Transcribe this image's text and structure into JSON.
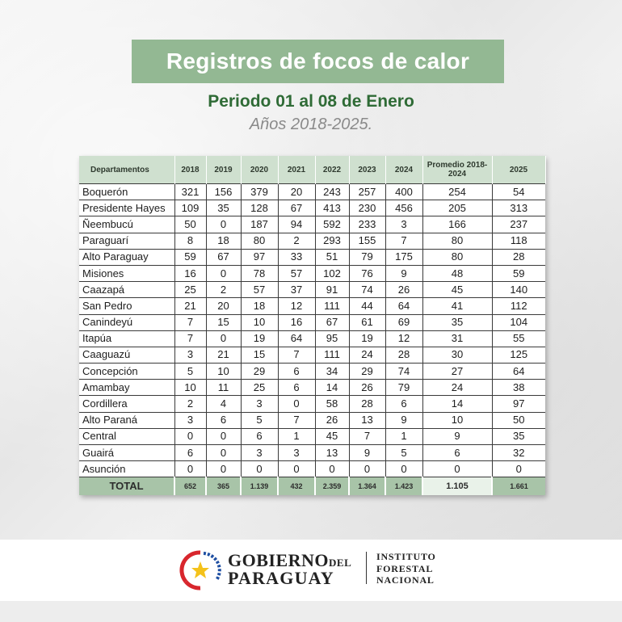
{
  "header": {
    "title": "Registros de focos de calor",
    "subtitle": "Periodo 01 al 08 de Enero",
    "years": "Años 2018-2025."
  },
  "table": {
    "columns": [
      "Departamentos",
      "2018",
      "2019",
      "2020",
      "2021",
      "2022",
      "2023",
      "2024",
      "Promedio 2018-2024",
      "2025"
    ],
    "rows": [
      {
        "dept": "Boquerón",
        "values": [
          "321",
          "156",
          "379",
          "20",
          "243",
          "257",
          "400",
          "254",
          "54"
        ]
      },
      {
        "dept": "Presidente Hayes",
        "values": [
          "109",
          "35",
          "128",
          "67",
          "413",
          "230",
          "456",
          "205",
          "313"
        ]
      },
      {
        "dept": "Ñeembucú",
        "values": [
          "50",
          "0",
          "187",
          "94",
          "592",
          "233",
          "3",
          "166",
          "237"
        ]
      },
      {
        "dept": "Paraguarí",
        "values": [
          "8",
          "18",
          "80",
          "2",
          "293",
          "155",
          "7",
          "80",
          "118"
        ]
      },
      {
        "dept": "Alto Paraguay",
        "values": [
          "59",
          "67",
          "97",
          "33",
          "51",
          "79",
          "175",
          "80",
          "28"
        ]
      },
      {
        "dept": "Misiones",
        "values": [
          "16",
          "0",
          "78",
          "57",
          "102",
          "76",
          "9",
          "48",
          "59"
        ]
      },
      {
        "dept": "Caazapá",
        "values": [
          "25",
          "2",
          "57",
          "37",
          "91",
          "74",
          "26",
          "45",
          "140"
        ]
      },
      {
        "dept": "San Pedro",
        "values": [
          "21",
          "20",
          "18",
          "12",
          "111",
          "44",
          "64",
          "41",
          "112"
        ]
      },
      {
        "dept": "Canindeyú",
        "values": [
          "7",
          "15",
          "10",
          "16",
          "67",
          "61",
          "69",
          "35",
          "104"
        ]
      },
      {
        "dept": "Itapúa",
        "values": [
          "7",
          "0",
          "19",
          "64",
          "95",
          "19",
          "12",
          "31",
          "55"
        ]
      },
      {
        "dept": "Caaguazú",
        "values": [
          "3",
          "21",
          "15",
          "7",
          "111",
          "24",
          "28",
          "30",
          "125"
        ]
      },
      {
        "dept": "Concepción",
        "values": [
          "5",
          "10",
          "29",
          "6",
          "34",
          "29",
          "74",
          "27",
          "64"
        ]
      },
      {
        "dept": "Amambay",
        "values": [
          "10",
          "11",
          "25",
          "6",
          "14",
          "26",
          "79",
          "24",
          "38"
        ]
      },
      {
        "dept": "Cordillera",
        "values": [
          "2",
          "4",
          "3",
          "0",
          "58",
          "28",
          "6",
          "14",
          "97"
        ]
      },
      {
        "dept": "Alto Paraná",
        "values": [
          "3",
          "6",
          "5",
          "7",
          "26",
          "13",
          "9",
          "10",
          "50"
        ]
      },
      {
        "dept": "Central",
        "values": [
          "0",
          "0",
          "6",
          "1",
          "45",
          "7",
          "1",
          "9",
          "35"
        ]
      },
      {
        "dept": "Guairá",
        "values": [
          "6",
          "0",
          "3",
          "3",
          "13",
          "9",
          "5",
          "6",
          "32"
        ]
      },
      {
        "dept": "Asunción",
        "values": [
          "0",
          "0",
          "0",
          "0",
          "0",
          "0",
          "0",
          "0",
          "0"
        ]
      }
    ],
    "total": {
      "label": "TOTAL",
      "values": [
        "652",
        "365",
        "1.139",
        "432",
        "2.359",
        "1.364",
        "1.423",
        "1.105",
        "1.661"
      ]
    }
  },
  "footer": {
    "gobierno_line1": "GOBIERNO",
    "gobierno_del": "DEL",
    "gobierno_line2": "PARAGUAY",
    "institute_lines": [
      "INSTITUTO",
      "FORESTAL",
      "NACIONAL"
    ],
    "logo_icon": "paraguay-star-emblem-icon",
    "colors": {
      "title_bg": "#93b893",
      "subtitle": "#2f6b36",
      "header_bg": "#cfe0cf",
      "total_bg": "#a8c4a8"
    }
  }
}
